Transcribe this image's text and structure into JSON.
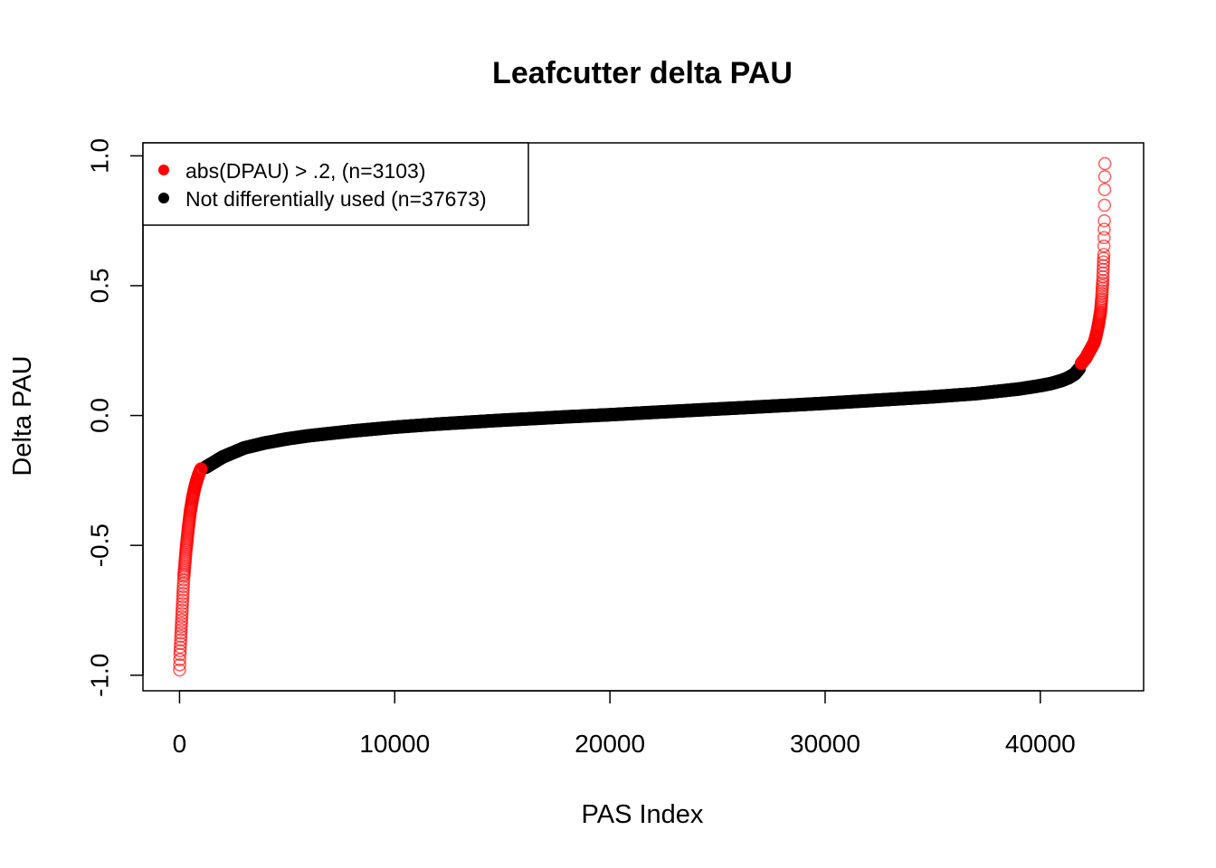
{
  "chart_data": {
    "type": "scatter",
    "title": "Leafcutter delta PAU",
    "xlabel": "PAS Index",
    "ylabel": "Delta PAU",
    "xlim": [
      -1700,
      44800
    ],
    "ylim": [
      -1.06,
      1.05
    ],
    "x_ticks": [
      0,
      10000,
      20000,
      30000,
      40000
    ],
    "x_tick_labels": [
      "0",
      "10000",
      "20000",
      "30000",
      "40000"
    ],
    "y_ticks": [
      -1.0,
      -0.5,
      0.0,
      0.5,
      1.0
    ],
    "y_tick_labels": [
      "-1.0",
      "-0.5",
      "0.0",
      "0.5",
      "1.0"
    ],
    "legend_position": "top-left",
    "total_points": 43000,
    "colors": {
      "significant": "#ff0000",
      "not_significant": "#000000"
    },
    "series": [
      {
        "name": "abs(DPAU) > .2, (n=3103)",
        "color": "#ff0000",
        "marker": "open-circle",
        "segments": [
          {
            "x": [
              0,
              20,
              60,
              120,
              200,
              300,
              400,
              500,
              600,
              700,
              800,
              900,
              1000
            ],
            "y": [
              -0.98,
              -0.92,
              -0.85,
              -0.75,
              -0.62,
              -0.52,
              -0.44,
              -0.37,
              -0.32,
              -0.28,
              -0.25,
              -0.225,
              -0.205
            ]
          },
          {
            "x": [
              41900,
              42100,
              42300,
              42500,
              42600,
              42700,
              42800,
              42850,
              42900,
              42950,
              42975,
              42990,
              43000
            ],
            "y": [
              0.2,
              0.22,
              0.25,
              0.28,
              0.31,
              0.35,
              0.4,
              0.45,
              0.52,
              0.62,
              0.75,
              0.87,
              0.97
            ]
          }
        ]
      },
      {
        "name": "Not differentially used (n=37673)",
        "color": "#000000",
        "marker": "filled-circle",
        "x": [
          1200,
          2000,
          3000,
          4000,
          5000,
          6000,
          8000,
          10000,
          12000,
          15000,
          18000,
          20000,
          22000,
          25000,
          28000,
          30000,
          32000,
          35000,
          37000,
          39000,
          40000,
          40500,
          41000,
          41300,
          41600,
          41800
        ],
        "y": [
          -0.2,
          -0.16,
          -0.125,
          -0.105,
          -0.09,
          -0.078,
          -0.06,
          -0.045,
          -0.033,
          -0.018,
          -0.005,
          0.003,
          0.012,
          0.025,
          0.038,
          0.047,
          0.057,
          0.072,
          0.084,
          0.102,
          0.115,
          0.123,
          0.135,
          0.145,
          0.16,
          0.18
        ]
      }
    ]
  }
}
